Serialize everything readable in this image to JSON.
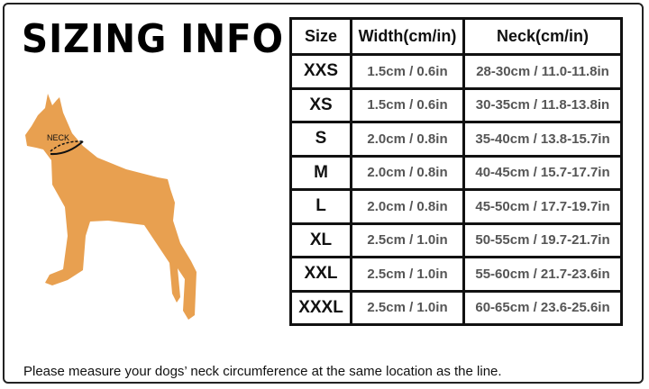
{
  "title": "SIZING INFO",
  "diagram": {
    "neck_label": "NECK",
    "dog_color": "#E8A050"
  },
  "table": {
    "headers": [
      "Size",
      "Width(cm/in)",
      "Neck(cm/in)"
    ],
    "rows": [
      {
        "size": "XXS",
        "width": "1.5cm / 0.6in",
        "neck": "28-30cm / 11.0-11.8in"
      },
      {
        "size": "XS",
        "width": "1.5cm / 0.6in",
        "neck": "30-35cm / 11.8-13.8in"
      },
      {
        "size": "S",
        "width": "2.0cm / 0.8in",
        "neck": "35-40cm / 13.8-15.7in"
      },
      {
        "size": "M",
        "width": "2.0cm / 0.8in",
        "neck": "40-45cm / 15.7-17.7in"
      },
      {
        "size": "L",
        "width": "2.0cm / 0.8in",
        "neck": "45-50cm / 17.7-19.7in"
      },
      {
        "size": "XL",
        "width": "2.5cm / 1.0in",
        "neck": "50-55cm / 19.7-21.7in"
      },
      {
        "size": "XXL",
        "width": "2.5cm / 1.0in",
        "neck": "55-60cm / 21.7-23.6in"
      },
      {
        "size": "XXXL",
        "width": "2.5cm / 1.0in",
        "neck": "60-65cm / 23.6-25.6in"
      }
    ]
  },
  "footer": "Please measure your dogs’  neck circumference at the same location as the line."
}
